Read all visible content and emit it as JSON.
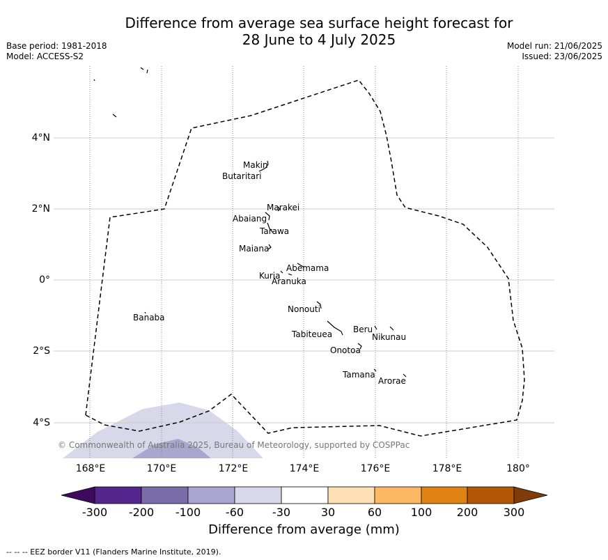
{
  "title": {
    "line1": "Difference from average sea surface height forecast for",
    "line2": "28 June to 4 July 2025"
  },
  "meta": {
    "base_period": "Base period: 1981-2018",
    "model": "Model: ACCESS-S2",
    "model_run": "Model run: 21/06/2025",
    "issued": "Issued: 23/06/2025"
  },
  "map": {
    "lat_ticks": [
      "4°N",
      "2°N",
      "0°",
      "2°S",
      "4°S"
    ],
    "lon_ticks": [
      "168°E",
      "170°E",
      "172°E",
      "174°E",
      "176°E",
      "178°E",
      "180°"
    ],
    "islands": [
      {
        "name": "Makin"
      },
      {
        "name": "Butaritari"
      },
      {
        "name": "Marakei"
      },
      {
        "name": "Abaiang"
      },
      {
        "name": "Tarawa"
      },
      {
        "name": "Maiana"
      },
      {
        "name": "Abemama"
      },
      {
        "name": "Kuria"
      },
      {
        "name": "Aranuka"
      },
      {
        "name": "Banaba"
      },
      {
        "name": "Nonouti"
      },
      {
        "name": "Beru"
      },
      {
        "name": "Tabiteuea"
      },
      {
        "name": "Nikunau"
      },
      {
        "name": "Onotoa"
      },
      {
        "name": "Tamana"
      },
      {
        "name": "Arorae"
      }
    ],
    "credit": "© Commonwealth of Australia 2025, Bureau of Meteorology, supported by COSPPac"
  },
  "colorbar": {
    "label": "Difference from average (mm)",
    "ticks": [
      "-300",
      "-200",
      "-100",
      "-60",
      "-30",
      "30",
      "60",
      "100",
      "200",
      "300"
    ],
    "colors": [
      "#3f0a5c",
      "#54278f",
      "#7a6da9",
      "#aba6cf",
      "#d9d8ea",
      "#ffffff",
      "#fee0b6",
      "#fdb863",
      "#e08214",
      "#b35806",
      "#7f3b08"
    ]
  },
  "footer": "--  --  -- EEZ border V11 (Flanders Marine Institute, 2019)."
}
